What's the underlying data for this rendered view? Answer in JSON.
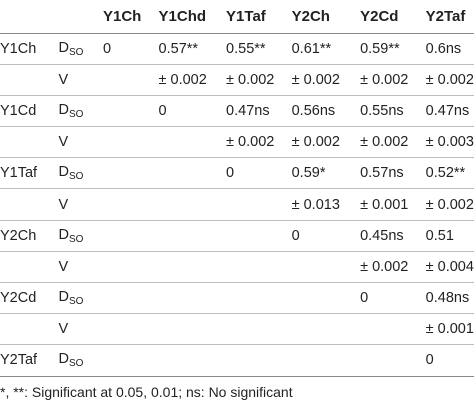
{
  "table": {
    "headers": [
      "",
      "",
      "Y1Ch",
      "Y1Chd",
      "Y1Taf",
      "Y2Ch",
      "Y2Cd",
      "Y2Taf"
    ],
    "groups": [
      {
        "name": "Y1Ch",
        "rows": [
          {
            "stat": "D",
            "stat_sub": "SO",
            "cells": [
              "0",
              "0.57**",
              "0.55**",
              "0.61**",
              "0.59**",
              "0.6ns"
            ]
          },
          {
            "stat": "V",
            "stat_sub": "",
            "cells": [
              "",
              "± 0.002",
              "± 0.002",
              "± 0.002",
              "± 0.002",
              "± 0.002"
            ]
          }
        ]
      },
      {
        "name": "Y1Cd",
        "rows": [
          {
            "stat": "D",
            "stat_sub": "SO",
            "cells": [
              "",
              "0",
              "0.47ns",
              "0.56ns",
              "0.55ns",
              "0.47ns"
            ]
          },
          {
            "stat": "V",
            "stat_sub": "",
            "cells": [
              "",
              "",
              "± 0.002",
              "± 0.002",
              "± 0.002",
              "± 0.003"
            ]
          }
        ]
      },
      {
        "name": "Y1Taf",
        "rows": [
          {
            "stat": "D",
            "stat_sub": "SO",
            "cells": [
              "",
              "",
              "0",
              "0.59*",
              "0.57ns",
              "0.52**"
            ]
          },
          {
            "stat": "V",
            "stat_sub": "",
            "cells": [
              "",
              "",
              "",
              "± 0.013",
              "± 0.001",
              "± 0.002"
            ]
          }
        ]
      },
      {
        "name": "Y2Ch",
        "rows": [
          {
            "stat": "D",
            "stat_sub": "SO",
            "cells": [
              "",
              "",
              "",
              "0",
              "0.45ns",
              "0.51"
            ]
          },
          {
            "stat": "V",
            "stat_sub": "",
            "cells": [
              "",
              "",
              "",
              "",
              "± 0.002",
              "± 0.004"
            ]
          }
        ]
      },
      {
        "name": "Y2Cd",
        "rows": [
          {
            "stat": "D",
            "stat_sub": "SO",
            "cells": [
              "",
              "",
              "",
              "",
              "0",
              "0.48ns"
            ]
          },
          {
            "stat": "V",
            "stat_sub": "",
            "cells": [
              "",
              "",
              "",
              "",
              "",
              "± 0.001"
            ]
          }
        ]
      },
      {
        "name": "Y2Taf",
        "rows": [
          {
            "stat": "D",
            "stat_sub": "SO",
            "cells": [
              "",
              "",
              "",
              "",
              "",
              "0"
            ]
          }
        ]
      }
    ]
  },
  "footnote": "*, **: Significant at 0.05, 0.01; ns: No significant"
}
